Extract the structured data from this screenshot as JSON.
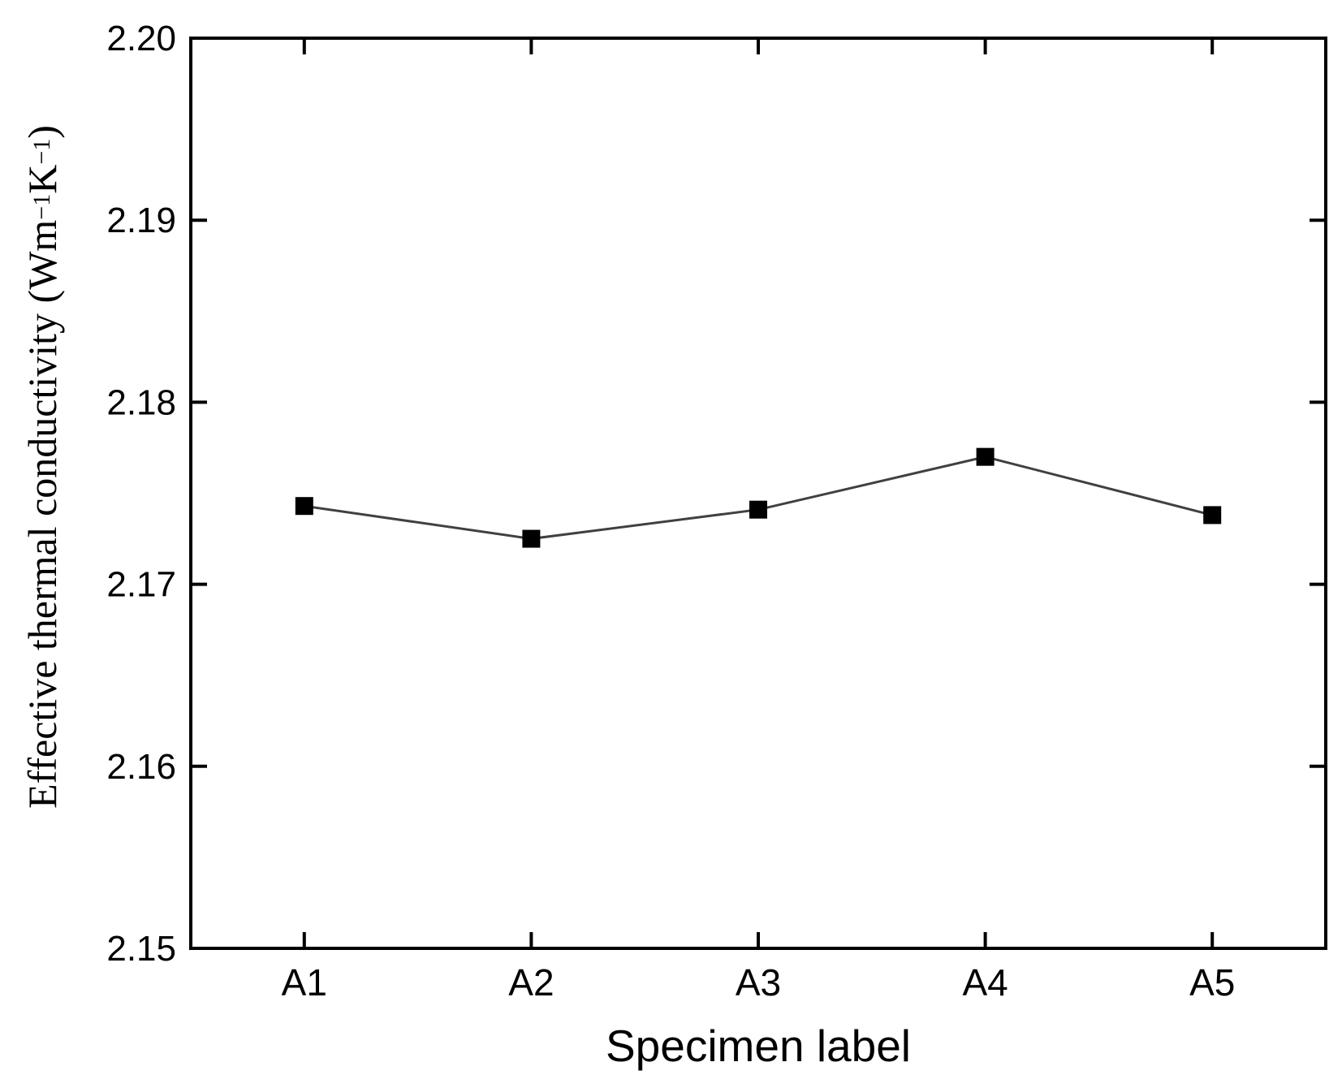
{
  "figure": {
    "background": "#ffffff",
    "axis_color": "#000000",
    "text_color": "#000000"
  },
  "chart_data": {
    "type": "line",
    "title": "",
    "xlabel": "Specimen label",
    "ylabel": "Effective thermal conductivity (Wm−1K−1)",
    "ylabel_parts": {
      "prefix": "Effective thermal conductivity (Wm",
      "sup1": "−1",
      "mid": "K",
      "sup2": "−1",
      "suffix": ")"
    },
    "categories": [
      "A1",
      "A2",
      "A3",
      "A4",
      "A5"
    ],
    "series": [
      {
        "name": "Effective thermal conductivity",
        "values": [
          2.1743,
          2.1725,
          2.1741,
          2.177,
          2.1738
        ]
      }
    ],
    "ylim": [
      2.15,
      2.2
    ],
    "ytick_values": [
      2.2,
      2.19,
      2.18,
      2.17,
      2.16,
      2.15
    ],
    "ytick_labels": [
      "2.20",
      "2.19",
      "2.18",
      "2.17",
      "2.16",
      "2.15"
    ],
    "grid": false,
    "legend": "none",
    "marker": "filled-square",
    "marker_size_px": 22,
    "marker_color": "#000000",
    "line_color": "#404040",
    "frame": "full-box-inward-ticks"
  }
}
